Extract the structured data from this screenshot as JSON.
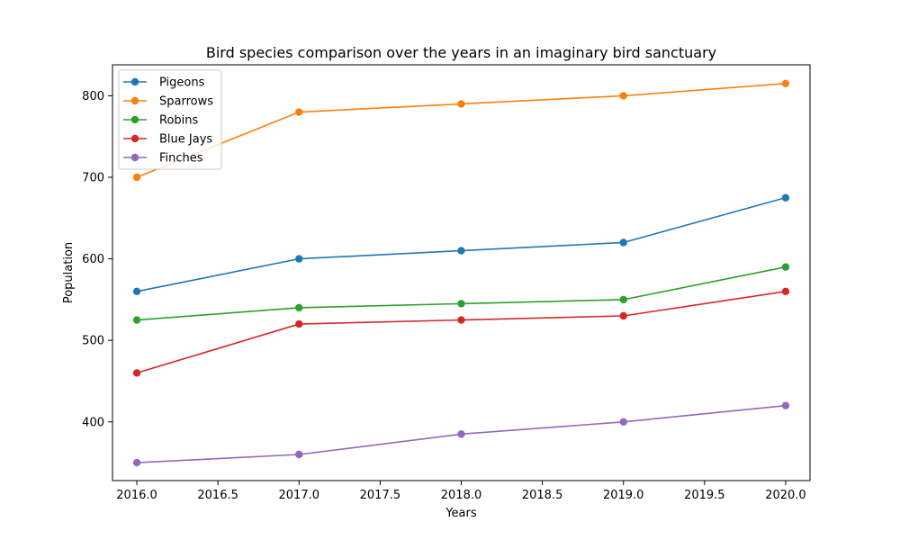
{
  "chart_data": {
    "type": "line",
    "title": "Bird species comparison over the years in an imaginary bird sanctuary",
    "xlabel": "Years",
    "ylabel": "Population",
    "x": [
      2016,
      2017,
      2018,
      2019,
      2020
    ],
    "x_ticks": [
      2016.0,
      2016.5,
      2017.0,
      2017.5,
      2018.0,
      2018.5,
      2019.0,
      2019.5,
      2020.0
    ],
    "x_tick_labels": [
      "2016.0",
      "2016.5",
      "2017.0",
      "2017.5",
      "2018.0",
      "2018.5",
      "2019.0",
      "2019.5",
      "2020.0"
    ],
    "y_ticks": [
      400,
      500,
      600,
      700,
      800
    ],
    "y_tick_labels": [
      "400",
      "500",
      "600",
      "700",
      "800"
    ],
    "xlim": [
      2015.85,
      2020.15
    ],
    "ylim": [
      328,
      838
    ],
    "grid": false,
    "legend_position": "top-left",
    "series": [
      {
        "name": "Pigeons",
        "color": "#1f77b4",
        "values": [
          560,
          600,
          610,
          620,
          675
        ]
      },
      {
        "name": "Sparrows",
        "color": "#ff7f0e",
        "values": [
          700,
          780,
          790,
          800,
          815
        ]
      },
      {
        "name": "Robins",
        "color": "#2ca02c",
        "values": [
          525,
          540,
          545,
          550,
          590
        ]
      },
      {
        "name": "Blue Jays",
        "color": "#d62728",
        "values": [
          460,
          520,
          525,
          530,
          560
        ]
      },
      {
        "name": "Finches",
        "color": "#9467bd",
        "values": [
          350,
          360,
          385,
          400,
          420
        ]
      }
    ]
  }
}
